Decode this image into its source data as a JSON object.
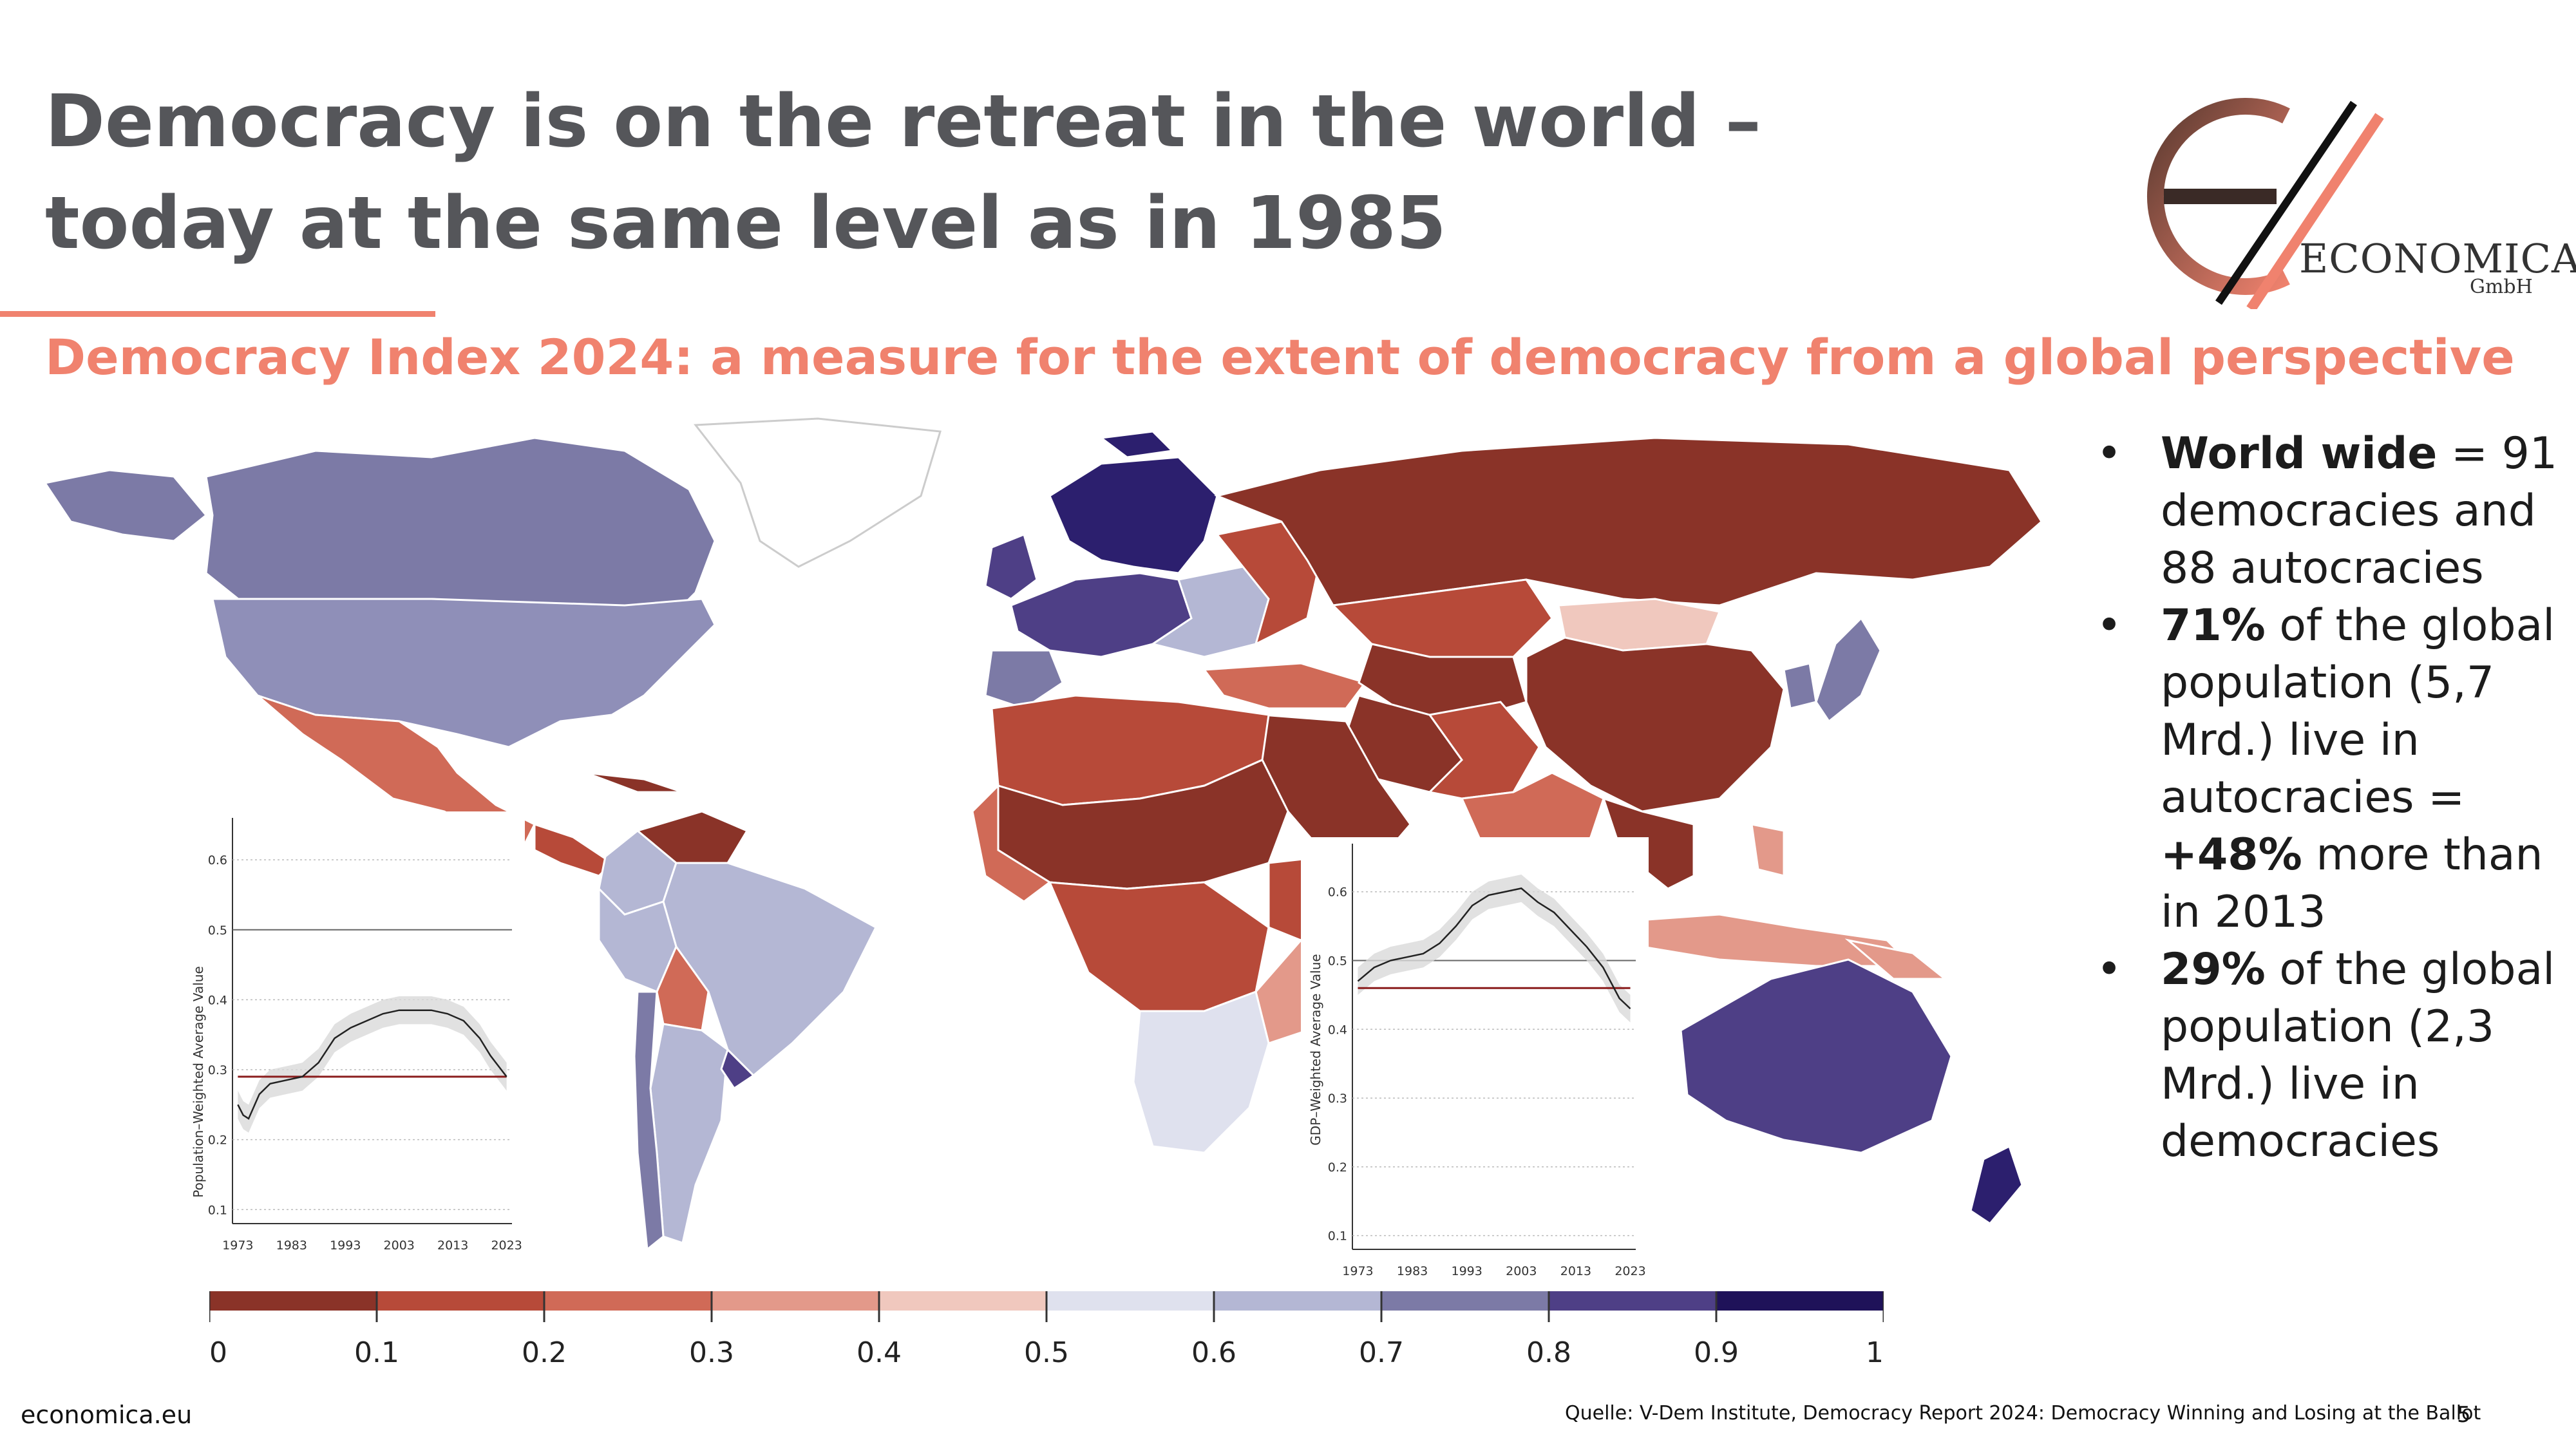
{
  "slide": {
    "title_line1": "Democracy is on the retreat in the world –",
    "title_line2": "today at the same level as in 1985",
    "subtitle": "Democracy Index 2024: a measure for the extent of democracy from a global perspective"
  },
  "logo": {
    "name": "ECONOMICA",
    "suffix": "GmbH"
  },
  "bullets": [
    {
      "bold": "World wide",
      "text": " = 91 democracies and 88 autocracies"
    },
    {
      "bold": "71%",
      "text": " of the global population (5,7 Mrd.) live in autocracies = "
    },
    {
      "bold": "29%",
      "text": " of the global population (2,3 Mrd.) live in democracies"
    }
  ],
  "bullet2_extra_bold": "+48%",
  "bullet2_tail": " more than in 2013",
  "colors": {
    "title": "#55565a",
    "accent": "#f0826e",
    "autocracy_dark": "#8a3328",
    "democracy_dark": "#2c1f6e"
  },
  "legend": {
    "ticks": [
      "0",
      "0.1",
      "0.2",
      "0.3",
      "0.4",
      "0.5",
      "0.6",
      "0.7",
      "0.8",
      "0.9",
      "1"
    ],
    "colors": [
      "#8a3328",
      "#b74a39",
      "#d06a57",
      "#e3998a",
      "#f0c8be",
      "#dfe1ee",
      "#b4b7d4",
      "#7c7aa6",
      "#4e3f86",
      "#1f1259"
    ]
  },
  "chart_data": [
    {
      "type": "line",
      "ylabel": "Population–Weighted Average Value",
      "x_ticks": [
        "1973",
        "1983",
        "1993",
        "2003",
        "2013",
        "2023"
      ],
      "y_ticks": [
        "0.1",
        "0.2",
        "0.3",
        "0.4",
        "0.5",
        "0.6"
      ],
      "ylim": [
        0.08,
        0.66
      ],
      "xlim": [
        1972,
        2024
      ],
      "reference_line": 0.5,
      "baseline": 0.29,
      "x": [
        1973,
        1974,
        1975,
        1977,
        1979,
        1982,
        1985,
        1988,
        1991,
        1994,
        1997,
        2000,
        2003,
        2006,
        2009,
        2012,
        2015,
        2018,
        2020,
        2022,
        2023
      ],
      "y": [
        0.25,
        0.235,
        0.23,
        0.265,
        0.28,
        0.285,
        0.29,
        0.31,
        0.345,
        0.36,
        0.37,
        0.38,
        0.385,
        0.385,
        0.385,
        0.38,
        0.37,
        0.345,
        0.32,
        0.3,
        0.29
      ]
    },
    {
      "type": "line",
      "ylabel": "GDP–Weighted Average Value",
      "x_ticks": [
        "1973",
        "1983",
        "1993",
        "2003",
        "2013",
        "2023"
      ],
      "y_ticks": [
        "0.1",
        "0.2",
        "0.3",
        "0.4",
        "0.5",
        "0.6"
      ],
      "ylim": [
        0.08,
        0.67
      ],
      "xlim": [
        1972,
        2024
      ],
      "reference_line": 0.5,
      "baseline": 0.46,
      "x": [
        1973,
        1976,
        1979,
        1982,
        1985,
        1988,
        1991,
        1994,
        1997,
        2000,
        2003,
        2006,
        2009,
        2012,
        2015,
        2018,
        2021,
        2023
      ],
      "y": [
        0.47,
        0.49,
        0.5,
        0.505,
        0.51,
        0.525,
        0.55,
        0.58,
        0.595,
        0.6,
        0.605,
        0.585,
        0.57,
        0.545,
        0.52,
        0.49,
        0.445,
        0.43
      ]
    }
  ],
  "footer": {
    "website": "economica.eu",
    "source": "Quelle: V-Dem Institute, Democracy Report 2024: Democracy Winning and Losing at the Ballot",
    "page": "5"
  }
}
